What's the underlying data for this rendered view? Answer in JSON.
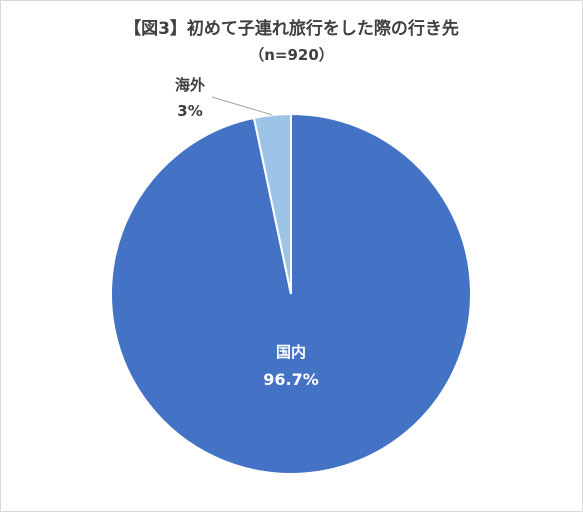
{
  "chart_data": {
    "type": "pie",
    "title": "【図3】初めて子連れ旅行をした際の行き先",
    "subtitle": "（n=920）",
    "categories": [
      "国内",
      "海外"
    ],
    "values": [
      96.7,
      3.3
    ],
    "value_labels": [
      "96.7%",
      "3%"
    ],
    "colors": [
      "#4472C4",
      "#9DC3E6"
    ],
    "legend": "none"
  }
}
